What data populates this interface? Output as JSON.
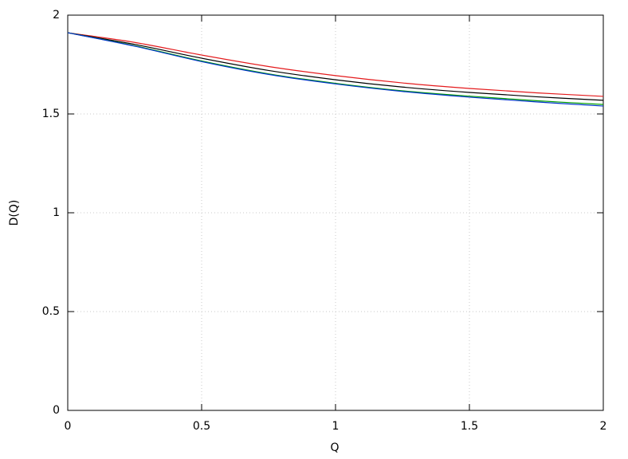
{
  "chart_data": {
    "type": "line",
    "x_label": "Q",
    "y_label": "D(Q)",
    "x": [
      0,
      0.25,
      0.5,
      0.75,
      1,
      1.25,
      1.5,
      1.75,
      2
    ],
    "series": [
      {
        "color": "#e41a1c",
        "values": [
          1.911,
          1.862,
          1.798,
          1.74,
          1.694,
          1.657,
          1.629,
          1.607,
          1.589
        ]
      },
      {
        "color": "#000000",
        "values": [
          1.911,
          1.852,
          1.782,
          1.72,
          1.673,
          1.636,
          1.609,
          1.587,
          1.569
        ]
      },
      {
        "color": "#009e00",
        "values": [
          1.911,
          1.845,
          1.768,
          1.703,
          1.655,
          1.617,
          1.59,
          1.567,
          1.548
        ]
      },
      {
        "color": "#0033cc",
        "values": [
          1.911,
          1.843,
          1.765,
          1.7,
          1.652,
          1.614,
          1.585,
          1.561,
          1.54
        ]
      }
    ],
    "xlim": [
      0,
      2
    ],
    "ylim": [
      0,
      2
    ],
    "xticks": [
      0,
      0.5,
      1,
      1.5,
      2
    ],
    "yticks": [
      0,
      0.5,
      1,
      1.5,
      2
    ],
    "grid": true
  }
}
